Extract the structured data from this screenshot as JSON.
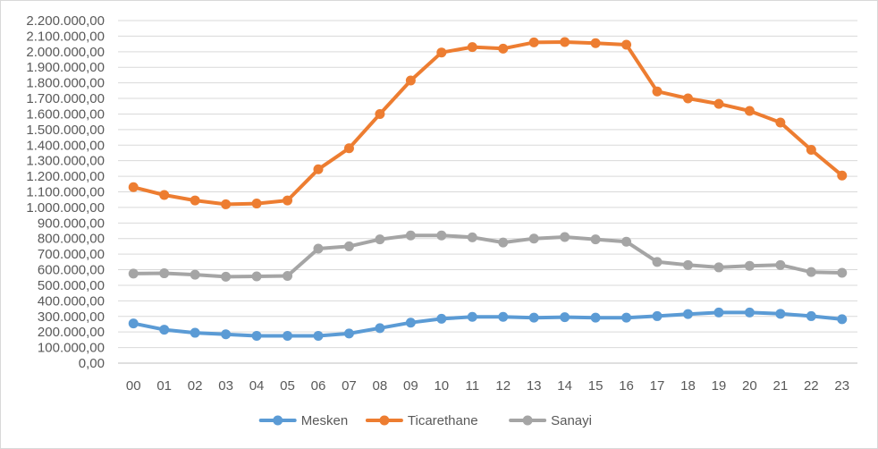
{
  "chart_data": {
    "type": "line",
    "title": "",
    "xlabel": "",
    "ylabel": "",
    "categories": [
      "00",
      "01",
      "02",
      "03",
      "04",
      "05",
      "06",
      "07",
      "08",
      "09",
      "10",
      "11",
      "12",
      "13",
      "14",
      "15",
      "16",
      "17",
      "18",
      "19",
      "20",
      "21",
      "22",
      "23"
    ],
    "ylim": [
      0,
      2200000
    ],
    "ytick_step": 100000,
    "ytick_labels": [
      "0,00",
      "100.000,00",
      "200.000,00",
      "300.000,00",
      "400.000,00",
      "500.000,00",
      "600.000,00",
      "700.000,00",
      "800.000,00",
      "900.000,00",
      "1.000.000,00",
      "1.100.000,00",
      "1.200.000,00",
      "1.300.000,00",
      "1.400.000,00",
      "1.500.000,00",
      "1.600.000,00",
      "1.700.000,00",
      "1.800.000,00",
      "1.900.000,00",
      "2.000.000,00",
      "2.100.000,00",
      "2.200.000,00"
    ],
    "grid": true,
    "legend_position": "bottom",
    "series": [
      {
        "name": "Mesken",
        "color": "#5b9bd5",
        "values": [
          255000,
          215000,
          195000,
          185000,
          175000,
          175000,
          175000,
          190000,
          225000,
          260000,
          285000,
          297000,
          297000,
          292000,
          295000,
          292000,
          292000,
          302000,
          315000,
          325000,
          325000,
          317000,
          302000,
          282000
        ]
      },
      {
        "name": "Ticarethane",
        "color": "#ed7d31",
        "values": [
          1130000,
          1080000,
          1045000,
          1020000,
          1025000,
          1045000,
          1245000,
          1380000,
          1600000,
          1815000,
          1995000,
          2030000,
          2020000,
          2060000,
          2062000,
          2055000,
          2045000,
          1745000,
          1700000,
          1665000,
          1620000,
          1545000,
          1370000,
          1205000
        ]
      },
      {
        "name": "Sanayi",
        "color": "#a5a5a5",
        "values": [
          575000,
          577000,
          568000,
          555000,
          557000,
          560000,
          735000,
          750000,
          795000,
          820000,
          820000,
          808000,
          775000,
          800000,
          810000,
          795000,
          780000,
          650000,
          630000,
          615000,
          625000,
          630000,
          585000,
          580000
        ]
      }
    ]
  }
}
